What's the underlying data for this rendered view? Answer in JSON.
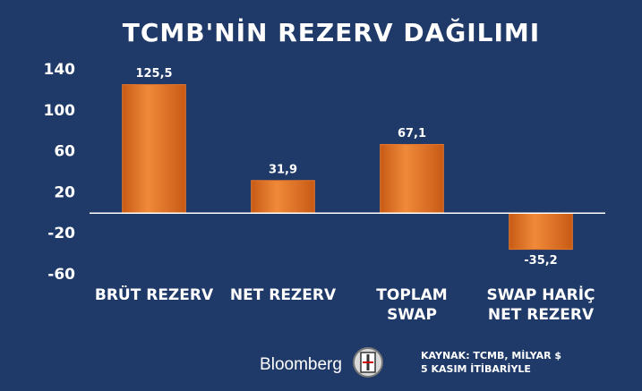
{
  "chart_data": {
    "type": "bar",
    "title": "TCMB'NİN REZERV DAĞILIMI",
    "categories": [
      "BRÜT REZERV",
      "NET REZERV",
      "TOPLAM\nSWAP",
      "SWAP HARİÇ\nNET REZERV"
    ],
    "values": [
      125.5,
      31.9,
      67.1,
      -35.2
    ],
    "value_labels": [
      "125,5",
      "31,9",
      "67,1",
      "-35,2"
    ],
    "color": "#e8772a",
    "ylim": [
      -60,
      140
    ],
    "yticks": [
      -60,
      -20,
      20,
      60,
      100,
      140
    ],
    "grid": false
  },
  "footer": {
    "brand": "Bloomberg",
    "source": [
      "KAYNAK: TCMB, MİLYAR $",
      "5 KASIM İTİBARİYLE"
    ]
  }
}
